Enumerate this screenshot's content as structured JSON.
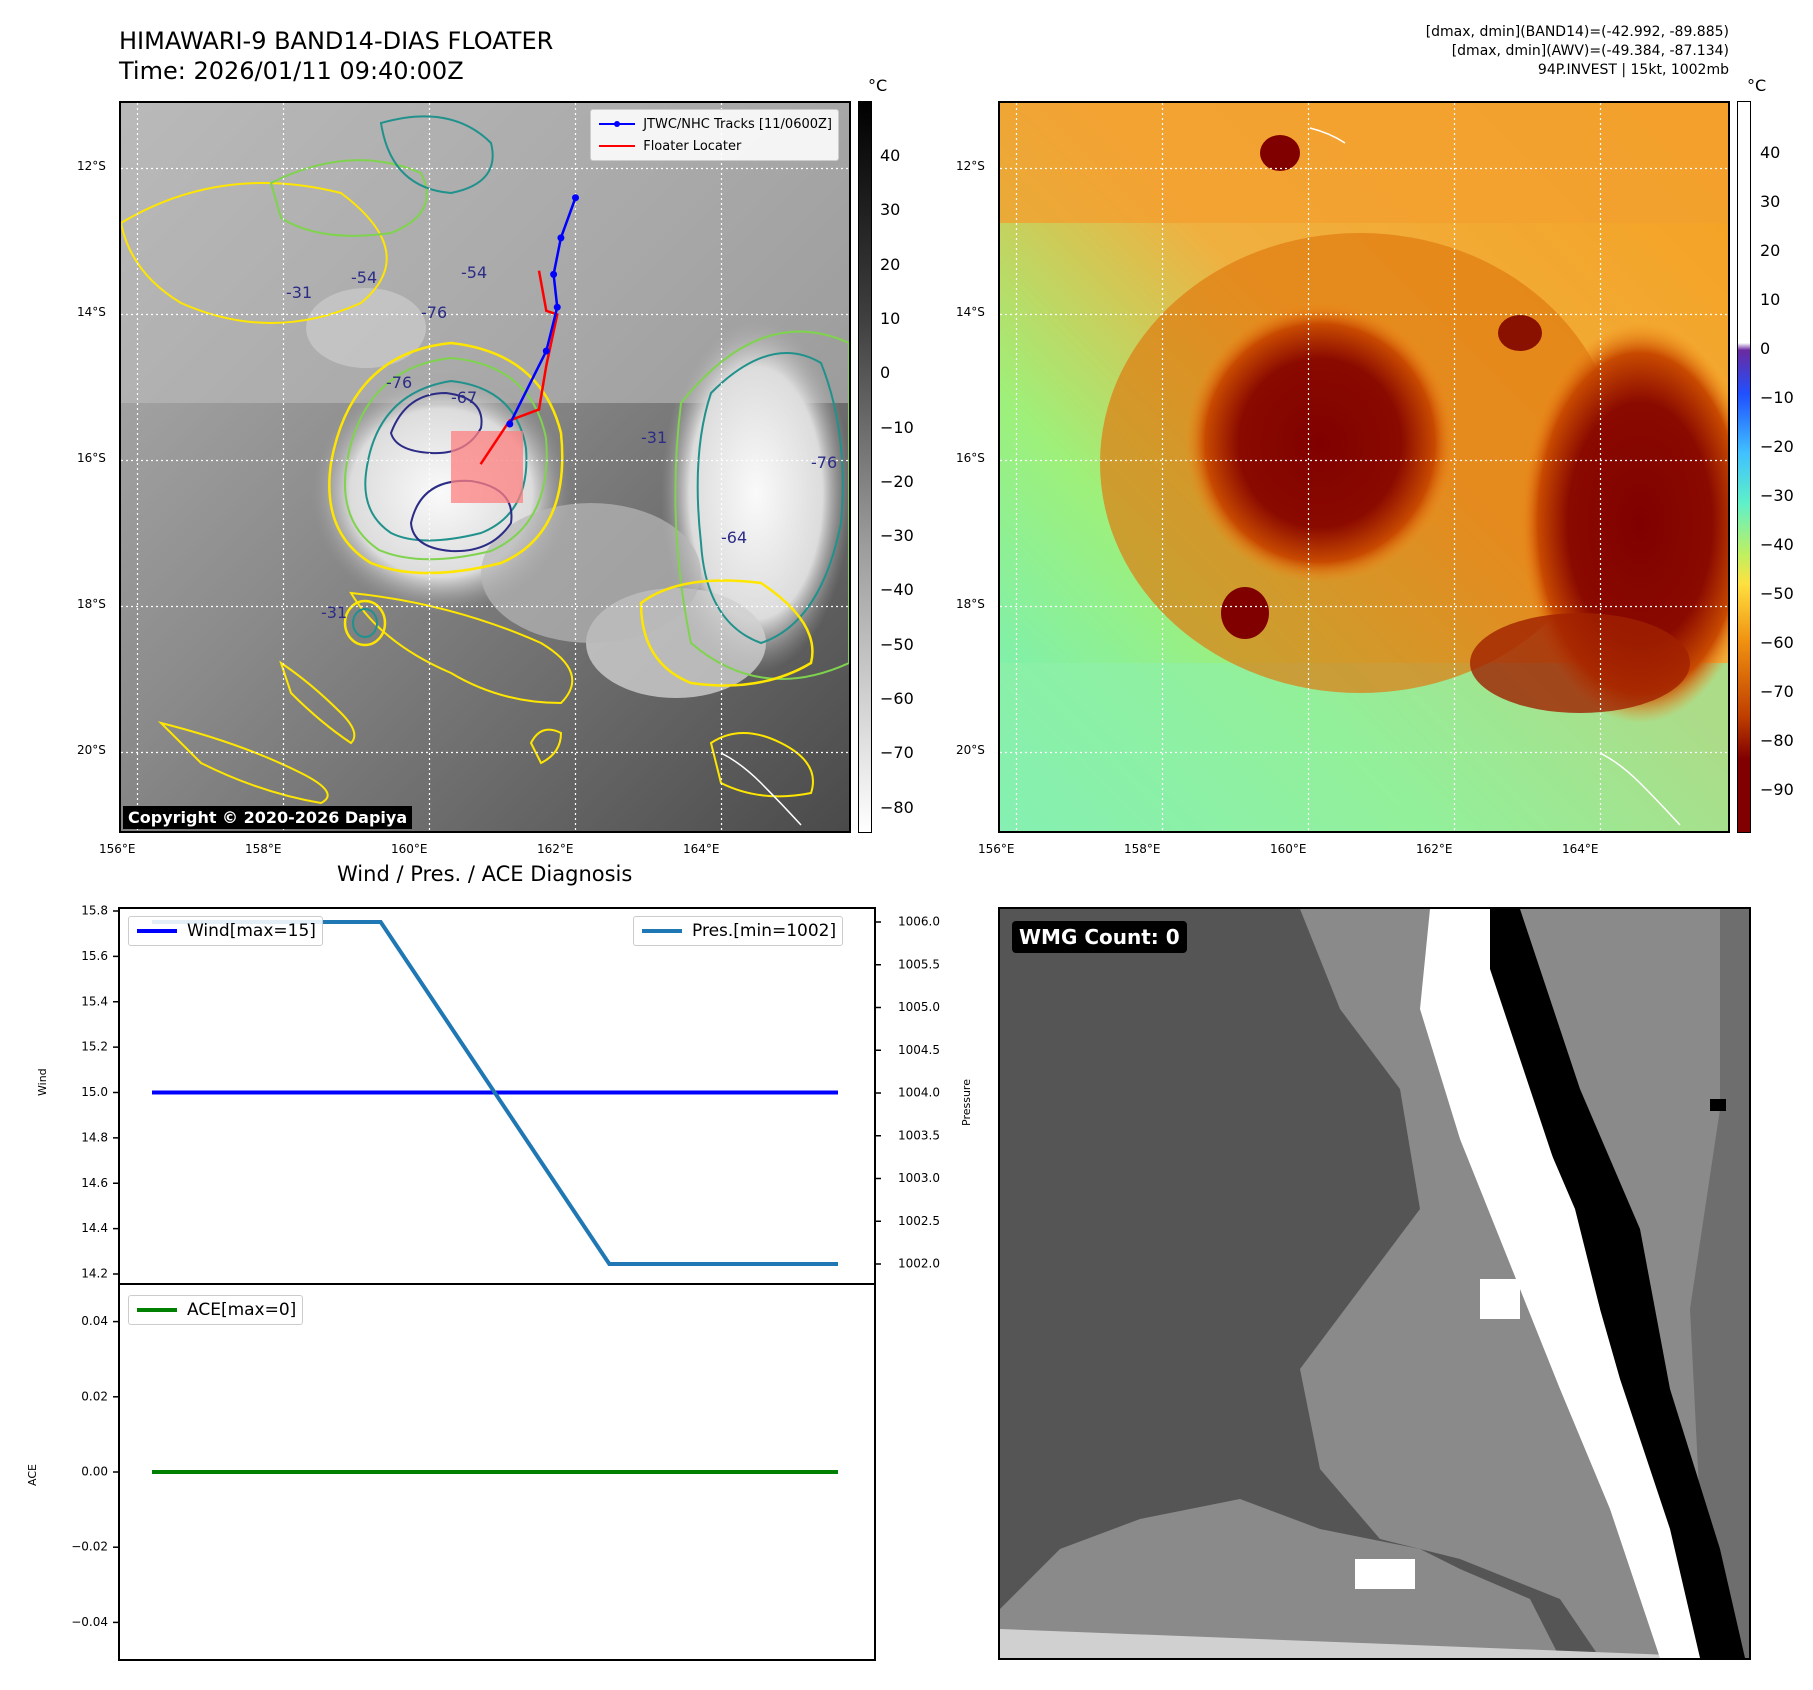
{
  "header": {
    "title_line1": "HIMAWARI-9 BAND14-DIAS FLOATER",
    "title_line2": "Time: 2026/01/11 09:40:00Z",
    "diag_line1": "[dmax, dmin](BAND14)=(-42.992, -89.885)",
    "diag_line2": "[dmax, dmin](AWV)=(-49.384, -87.134)",
    "diag_line3": "94P.INVEST | 15kt, 1002mb"
  },
  "map": {
    "lat_ticks": [
      "12°S",
      "14°S",
      "16°S",
      "18°S",
      "20°S"
    ],
    "lon_ticks": [
      "156°E",
      "158°E",
      "160°E",
      "162°E",
      "164°E"
    ],
    "contour_labels": [
      "-76",
      "-76",
      "-67",
      "-54",
      "-54",
      "-31",
      "-31",
      "-76",
      "-64",
      "-31"
    ],
    "legend": {
      "track_label": "JTWC/NHC Tracks [11/0600Z]",
      "locater_label": "Floater Locater"
    },
    "copyright": "Copyright © 2020-2026 Dapiya",
    "colors": {
      "track": "#0000ff",
      "locater": "#ff0000",
      "contour_yellow": "#ffe600",
      "contour_green": "#7fd34e",
      "contour_teal": "#21918c",
      "contour_navy": "#2c2c86"
    },
    "track": [
      [
        162.0,
        -12.4
      ],
      [
        161.8,
        -12.95
      ],
      [
        161.7,
        -13.45
      ],
      [
        161.75,
        -13.9
      ],
      [
        161.6,
        -14.5
      ],
      [
        161.1,
        -15.5
      ]
    ],
    "locater": [
      [
        161.5,
        -13.4
      ],
      [
        161.6,
        -13.95
      ],
      [
        161.75,
        -14.0
      ],
      [
        161.6,
        -14.7
      ],
      [
        161.5,
        -15.3
      ],
      [
        161.1,
        -15.45
      ],
      [
        160.7,
        -16.05
      ]
    ]
  },
  "colorbar_left": {
    "unit": "°C",
    "ticks": [
      "40",
      "30",
      "20",
      "10",
      "0",
      "−10",
      "−20",
      "−30",
      "−40",
      "−50",
      "−60",
      "−70",
      "−80"
    ]
  },
  "colorbar_right": {
    "unit": "°C",
    "ticks": [
      "40",
      "30",
      "20",
      "10",
      "0",
      "−10",
      "−20",
      "−30",
      "−40",
      "−50",
      "−60",
      "−70",
      "−80",
      "−90"
    ]
  },
  "wmg": {
    "label": "WMG Count: 0"
  },
  "chart_data": [
    {
      "type": "line",
      "title": "Wind / Pres. / ACE Diagnosis",
      "ylabel": "Wind",
      "y2label": "Pressure",
      "x": [
        0,
        1,
        2,
        3
      ],
      "ylim": [
        14.2,
        15.8
      ],
      "y2lim": [
        1002.0,
        1006.0
      ],
      "series": [
        {
          "name": "Wind[max=15]",
          "axis": "left",
          "color": "#0000ff",
          "values": [
            15,
            15,
            15,
            15
          ]
        },
        {
          "name": "Pres.[min=1002]",
          "axis": "right",
          "color": "#1f77b4",
          "values": [
            1006,
            1006,
            1002,
            1002
          ]
        }
      ],
      "yticks": [
        "15.8",
        "15.6",
        "15.4",
        "15.2",
        "15.0",
        "14.8",
        "14.6",
        "14.4",
        "14.2"
      ],
      "y2ticks": [
        "1006.0",
        "1005.5",
        "1005.0",
        "1004.5",
        "1004.0",
        "1003.5",
        "1003.0",
        "1002.5",
        "1002.0"
      ]
    },
    {
      "type": "line",
      "ylabel": "ACE",
      "x": [
        0,
        1,
        2,
        3
      ],
      "ylim": [
        -0.05,
        0.05
      ],
      "series": [
        {
          "name": "ACE[max=0]",
          "color": "#008000",
          "values": [
            0,
            0,
            0,
            0
          ]
        }
      ],
      "yticks": [
        "0.04",
        "0.02",
        "0.00",
        "−0.02",
        "−0.04"
      ]
    }
  ]
}
